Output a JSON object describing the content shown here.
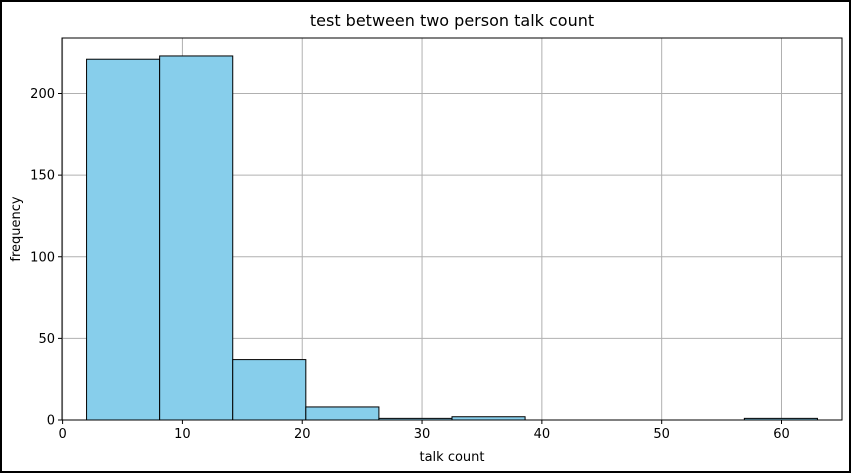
{
  "chart_data": {
    "type": "bar",
    "title": "test between two person talk count",
    "xlabel": "talk count",
    "ylabel": "frequency",
    "xlim": [
      -0.05,
      65.05
    ],
    "ylim": [
      0,
      234
    ],
    "xticks": [
      0,
      10,
      20,
      30,
      40,
      50,
      60
    ],
    "yticks": [
      0,
      50,
      100,
      150,
      200
    ],
    "grid": true,
    "colors": {
      "bar_fill": "#87ceeb",
      "bar_edge": "#000000",
      "grid": "#b0b0b0",
      "axis": "#000000",
      "background": "#ffffff"
    },
    "bins": [
      {
        "x0": 2.0,
        "x1": 8.1,
        "value": 221
      },
      {
        "x0": 8.1,
        "x1": 14.2,
        "value": 223
      },
      {
        "x0": 14.2,
        "x1": 20.3,
        "value": 37
      },
      {
        "x0": 20.3,
        "x1": 26.4,
        "value": 8
      },
      {
        "x0": 26.4,
        "x1": 32.5,
        "value": 1
      },
      {
        "x0": 32.5,
        "x1": 38.6,
        "value": 2
      },
      {
        "x0": 38.6,
        "x1": 44.7,
        "value": 0
      },
      {
        "x0": 44.7,
        "x1": 50.8,
        "value": 0
      },
      {
        "x0": 50.8,
        "x1": 56.9,
        "value": 0
      },
      {
        "x0": 56.9,
        "x1": 63.0,
        "value": 1
      }
    ]
  }
}
